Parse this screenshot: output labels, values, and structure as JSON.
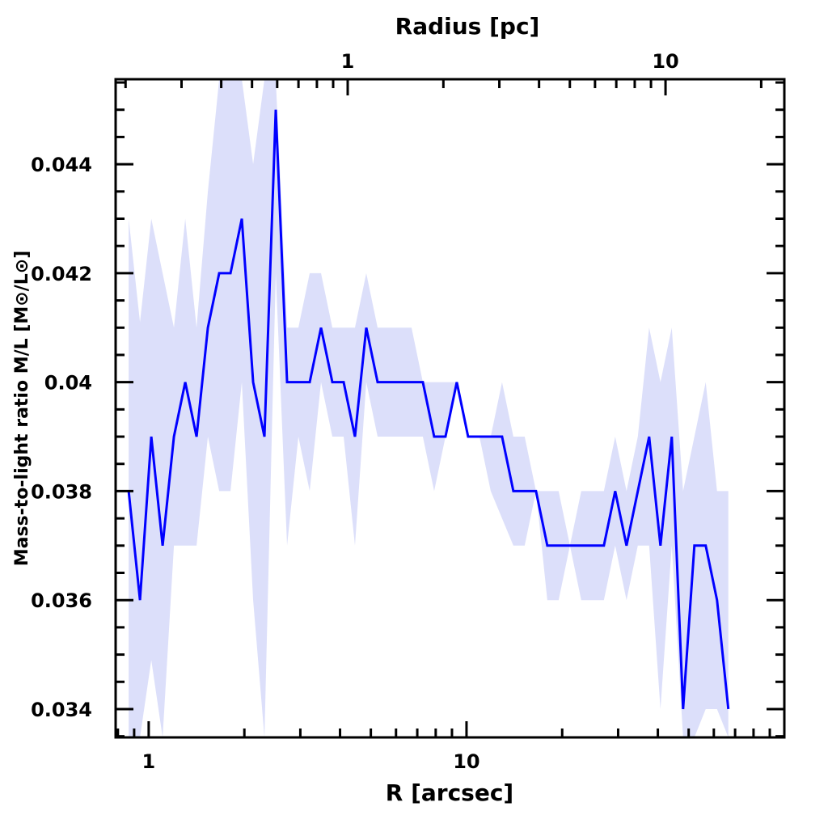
{
  "chart_data": {
    "type": "line",
    "title": "",
    "xlabel": "R [arcsec]",
    "x2label": "Radius [pc]",
    "ylabel": "Mass-to-light ratio M/L [M⊙/L⊙]",
    "xscale": "log",
    "xlim": [
      0.787,
      100
    ],
    "ylim": [
      0.03348,
      0.04556
    ],
    "pc_per_arcsec": 0.2365,
    "x_tick_labels": [
      "1",
      "10"
    ],
    "x_tick_values": [
      1,
      10
    ],
    "x2_tick_labels": [
      "1",
      "10"
    ],
    "x2_tick_values": [
      1,
      10
    ],
    "y_tick_labels": [
      "0.034",
      "0.036",
      "0.038",
      "0.04",
      "0.042",
      "0.044"
    ],
    "y_tick_values": [
      0.034,
      0.036,
      0.038,
      0.04,
      0.042,
      0.044
    ],
    "grid": false,
    "x_start": 0.865,
    "x_log_step": 0.0356,
    "series": [
      {
        "name": "M/L",
        "color": "#0000ff",
        "values": [
          0.038,
          0.036,
          0.039,
          0.037,
          0.039,
          0.04,
          0.039,
          0.041,
          0.042,
          0.042,
          0.043,
          0.04,
          0.039,
          0.045,
          0.04,
          0.04,
          0.04,
          0.041,
          0.04,
          0.04,
          0.039,
          0.041,
          0.04,
          0.04,
          0.04,
          0.04,
          0.04,
          0.039,
          0.039,
          0.04,
          0.039,
          0.039,
          0.039,
          0.039,
          0.038,
          0.038,
          0.038,
          0.037,
          0.037,
          0.037,
          0.037,
          0.037,
          0.037,
          0.038,
          0.037,
          0.038,
          0.039,
          0.037,
          0.039,
          0.034,
          0.037,
          0.037,
          0.036,
          0.034
        ]
      }
    ],
    "error_band": {
      "color": "#dcdffa",
      "upper": [
        0.043,
        0.0411,
        0.043,
        0.042,
        0.041,
        0.043,
        0.041,
        0.0435,
        0.047,
        0.047,
        0.047,
        0.044,
        0.047,
        0.047,
        0.041,
        0.041,
        0.042,
        0.042,
        0.041,
        0.041,
        0.041,
        0.042,
        0.041,
        0.041,
        0.041,
        0.041,
        0.04,
        0.04,
        0.04,
        0.04,
        0.039,
        0.039,
        0.039,
        0.04,
        0.039,
        0.039,
        0.038,
        0.038,
        0.038,
        0.037,
        0.038,
        0.038,
        0.038,
        0.039,
        0.038,
        0.039,
        0.041,
        0.04,
        0.041,
        0.038,
        0.039,
        0.04,
        0.038,
        0.038
      ],
      "lower": [
        0.033,
        0.033,
        0.0349,
        0.033,
        0.037,
        0.037,
        0.037,
        0.039,
        0.038,
        0.038,
        0.04,
        0.036,
        0.033,
        0.042,
        0.037,
        0.039,
        0.038,
        0.04,
        0.039,
        0.039,
        0.037,
        0.04,
        0.039,
        0.039,
        0.039,
        0.039,
        0.039,
        0.038,
        0.039,
        0.04,
        0.039,
        0.039,
        0.038,
        0.0375,
        0.037,
        0.037,
        0.038,
        0.036,
        0.036,
        0.037,
        0.036,
        0.036,
        0.036,
        0.037,
        0.036,
        0.037,
        0.037,
        0.034,
        0.037,
        0.033,
        0.033,
        0.034,
        0.034,
        0.033
      ]
    }
  }
}
